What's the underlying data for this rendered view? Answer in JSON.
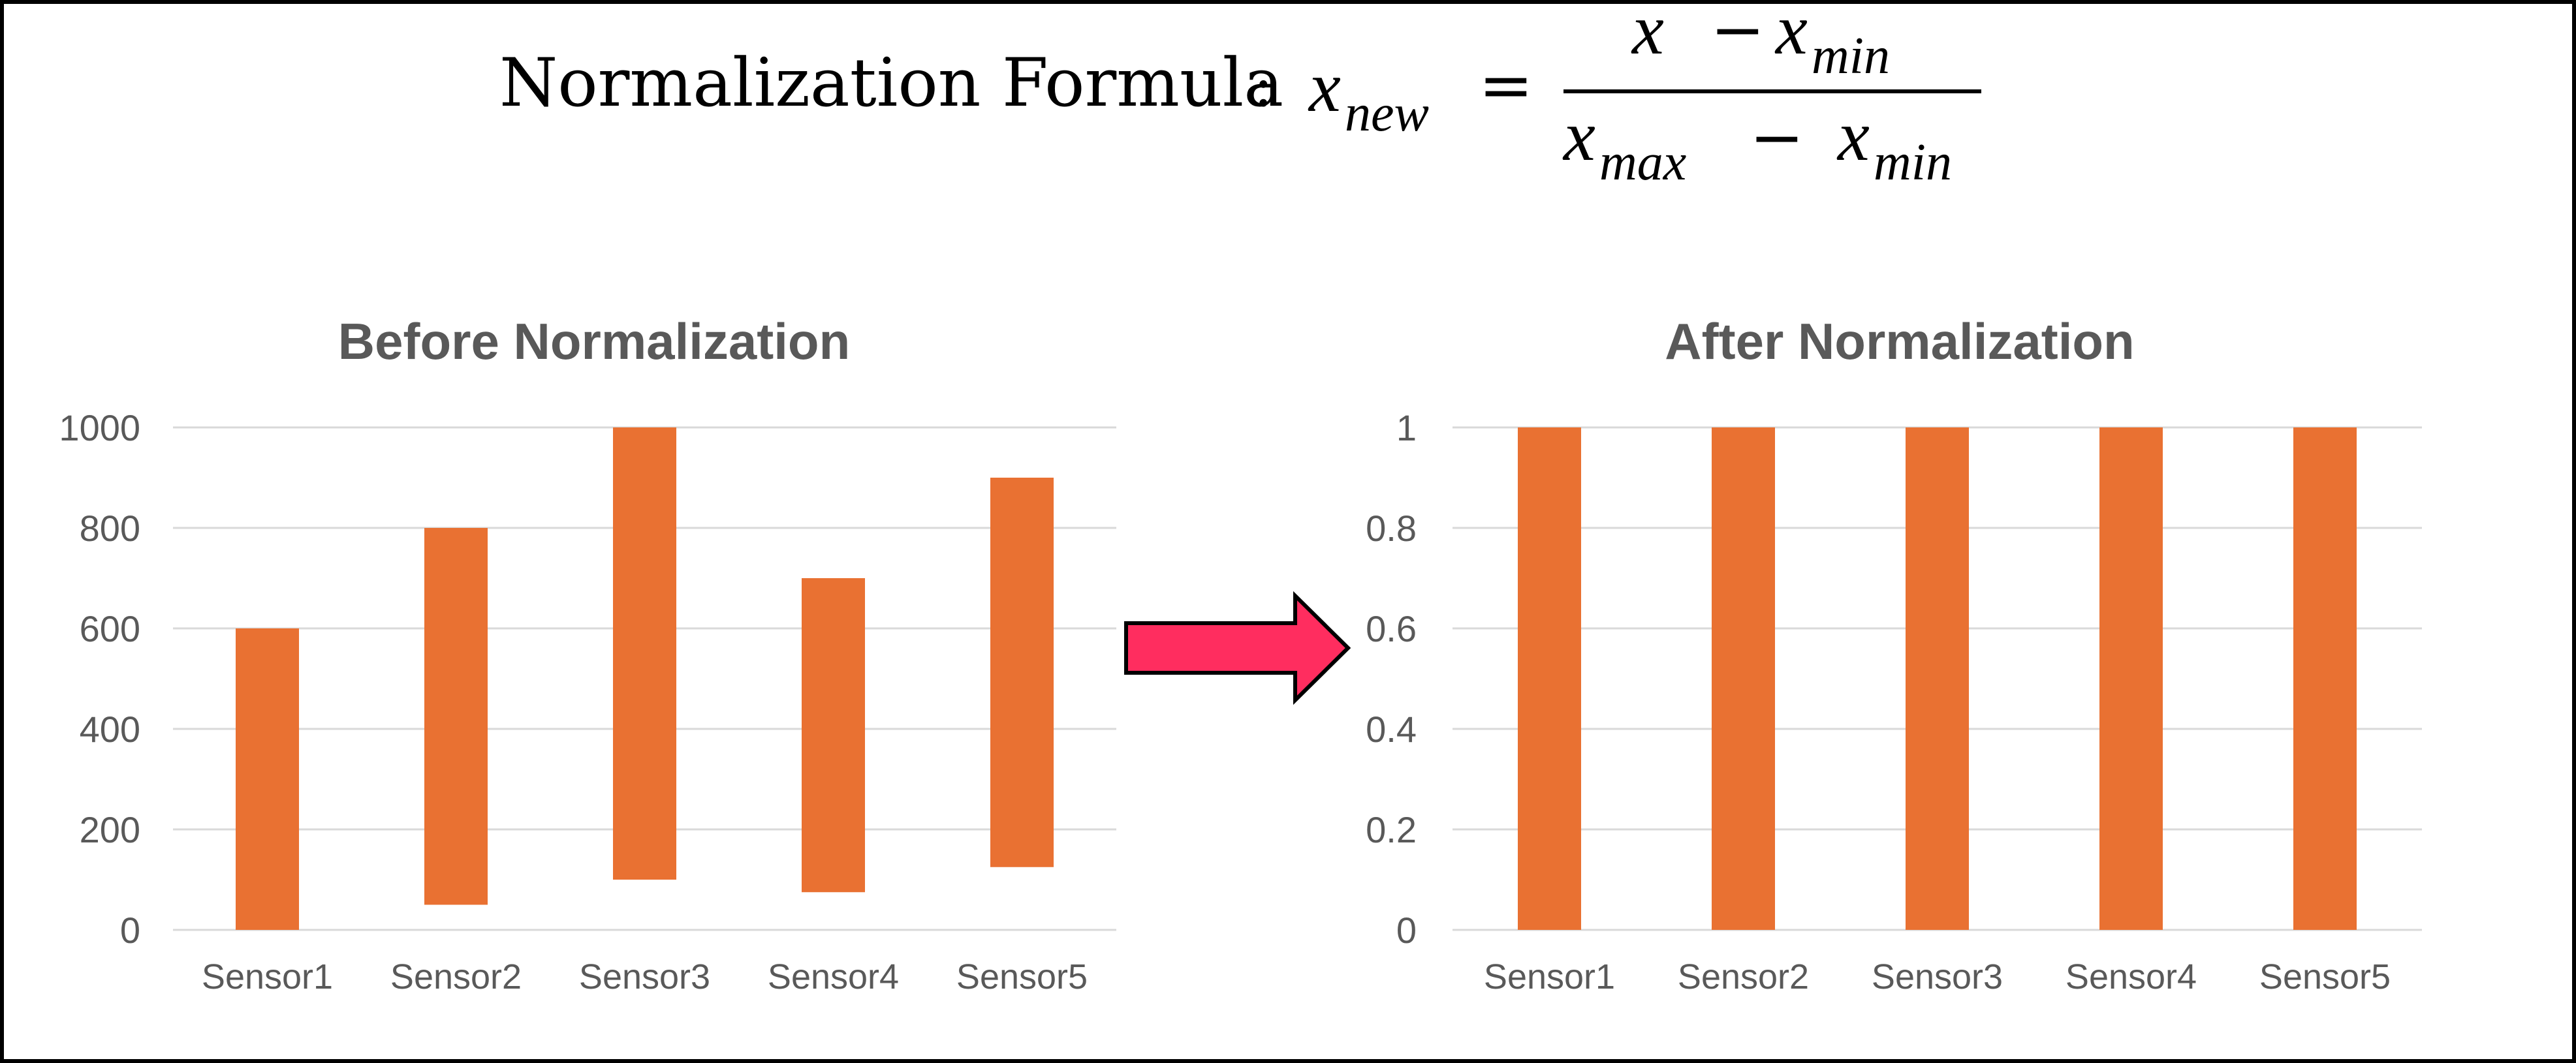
{
  "formula": {
    "label": "Normalization Formula",
    "separator": ":",
    "lhs_var": "x",
    "lhs_sub": "new",
    "equals": "=",
    "num_var": "x",
    "num_minus": "−",
    "num_var2": "x",
    "num_sub2": "min",
    "den_var": "x",
    "den_sub": "max",
    "den_minus": "−",
    "den_var2": "x",
    "den_sub2": "min"
  },
  "colors": {
    "bar": "#E97132",
    "arrow_fill": "#FF2D5F",
    "arrow_stroke": "#000000",
    "grid": "#D9D9D9",
    "title": "#595959",
    "tick": "#595959"
  },
  "chart_data": [
    {
      "type": "bar",
      "title": "Before Normalization",
      "categories": [
        "Sensor1",
        "Sensor2",
        "Sensor3",
        "Sensor4",
        "Sensor5"
      ],
      "series": [
        {
          "ranges": [
            [
              0,
              600
            ],
            [
              50,
              800
            ],
            [
              100,
              1000
            ],
            [
              75,
              700
            ],
            [
              125,
              900
            ]
          ]
        }
      ],
      "yticks": [
        "0",
        "200",
        "400",
        "600",
        "800",
        "1000"
      ],
      "ylim": [
        0,
        1000
      ],
      "grid": true,
      "legend": "none"
    },
    {
      "type": "bar",
      "title": "After Normalization",
      "categories": [
        "Sensor1",
        "Sensor2",
        "Sensor3",
        "Sensor4",
        "Sensor5"
      ],
      "series": [
        {
          "ranges": [
            [
              0,
              1
            ],
            [
              0,
              1
            ],
            [
              0,
              1
            ],
            [
              0,
              1
            ],
            [
              0,
              1
            ]
          ]
        }
      ],
      "yticks": [
        "0",
        "0.2",
        "0.4",
        "0.6",
        "0.8",
        "1"
      ],
      "ylim": [
        0,
        1
      ],
      "grid": true,
      "legend": "none"
    }
  ]
}
